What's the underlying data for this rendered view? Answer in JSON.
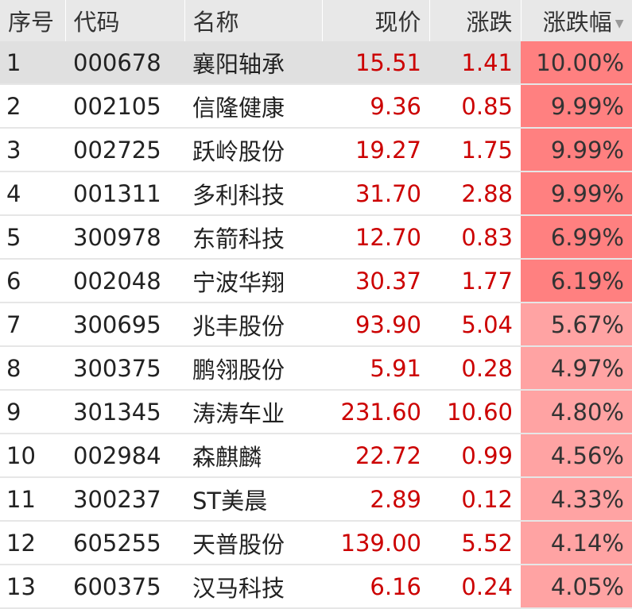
{
  "colors": {
    "up": "#cc0000",
    "pct_high_bg": "#ff8080",
    "pct_low_bg": "#ffa3a3",
    "header_bg": "#e8e8e8",
    "selected_row_bg": "#e0e0e0"
  },
  "headers": [
    "序号",
    "代码",
    "名称",
    "现价",
    "涨跌",
    "涨跌幅"
  ],
  "sort_icon": "triangle-down-icon",
  "rows": [
    {
      "no": "1",
      "code": "000678",
      "name": "襄阳轴承",
      "price": "15.51",
      "change": "1.41",
      "pct": "10.00%"
    },
    {
      "no": "2",
      "code": "002105",
      "name": "信隆健康",
      "price": "9.36",
      "change": "0.85",
      "pct": "9.99%"
    },
    {
      "no": "3",
      "code": "002725",
      "name": "跃岭股份",
      "price": "19.27",
      "change": "1.75",
      "pct": "9.99%"
    },
    {
      "no": "4",
      "code": "001311",
      "name": "多利科技",
      "price": "31.70",
      "change": "2.88",
      "pct": "9.99%"
    },
    {
      "no": "5",
      "code": "300978",
      "name": "东箭科技",
      "price": "12.70",
      "change": "0.83",
      "pct": "6.99%"
    },
    {
      "no": "6",
      "code": "002048",
      "name": "宁波华翔",
      "price": "30.37",
      "change": "1.77",
      "pct": "6.19%"
    },
    {
      "no": "7",
      "code": "300695",
      "name": "兆丰股份",
      "price": "93.90",
      "change": "5.04",
      "pct": "5.67%"
    },
    {
      "no": "8",
      "code": "300375",
      "name": "鹏翎股份",
      "price": "5.91",
      "change": "0.28",
      "pct": "4.97%"
    },
    {
      "no": "9",
      "code": "301345",
      "name": "涛涛车业",
      "price": "231.60",
      "change": "10.60",
      "pct": "4.80%"
    },
    {
      "no": "10",
      "code": "002984",
      "name": "森麒麟",
      "price": "22.72",
      "change": "0.99",
      "pct": "4.56%"
    },
    {
      "no": "11",
      "code": "300237",
      "name": "ST美晨",
      "price": "2.89",
      "change": "0.12",
      "pct": "4.33%"
    },
    {
      "no": "12",
      "code": "605255",
      "name": "天普股份",
      "price": "139.00",
      "change": "5.52",
      "pct": "4.14%"
    },
    {
      "no": "13",
      "code": "600375",
      "name": "汉马科技",
      "price": "6.16",
      "change": "0.24",
      "pct": "4.05%"
    }
  ]
}
